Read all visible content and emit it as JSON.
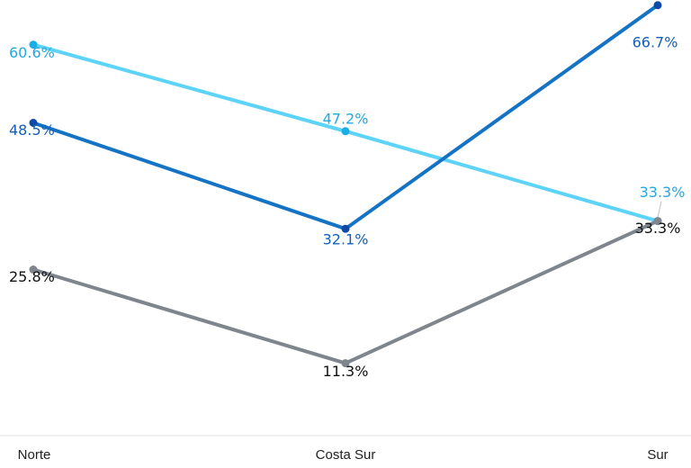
{
  "chart_data": {
    "type": "line",
    "title": "",
    "xlabel": "",
    "ylabel": "",
    "categories": [
      "Norte",
      "Costa Sur",
      "Sur"
    ],
    "ylim": [
      0,
      70
    ],
    "grid": false,
    "series": [
      {
        "color": "#5dd3f7",
        "marker_color": "#1aaee8",
        "label_color": "#22a8e0",
        "values": [
          60.6,
          47.2,
          33.3
        ],
        "labels": [
          "60.6%",
          "47.2%",
          "33.3%"
        ]
      },
      {
        "color": "#1473c4",
        "marker_color": "#0f4aa8",
        "label_color": "#1460b8",
        "values": [
          48.5,
          32.1,
          66.7
        ],
        "labels": [
          "48.5%",
          "32.1%",
          "66.7%"
        ]
      },
      {
        "color": "#7e858d",
        "marker_color": "#7e858d",
        "label_color": "#111111",
        "values": [
          25.8,
          11.3,
          33.3
        ],
        "labels": [
          "25.8%",
          "11.3%",
          "33.3%"
        ]
      }
    ]
  }
}
